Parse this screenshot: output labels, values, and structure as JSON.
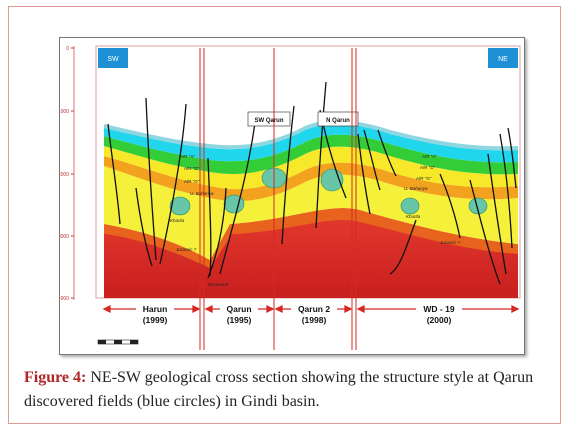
{
  "figure": {
    "direction_left": "SW",
    "direction_right": "NE",
    "depth_ticks": [
      "0",
      "1000",
      "2000",
      "3000",
      "4000"
    ],
    "well_labels": [
      "SW Qarun",
      "N Qarun"
    ],
    "layer_labels": {
      "ar_a_left": "A/R \"A\"",
      "ar_d_left": "A/R \"D\"",
      "ar_g_left": "A/R \"G\"",
      "u_bahariya_left": "U. Bahariya",
      "kharita_left": "Kharita",
      "jurassic_left": "Jurassic ?",
      "basement": "Basement",
      "ar_a_right": "A/R \"A\"",
      "ar_d_right": "A/R \"D\"",
      "ar_g_right": "A/R \"G\"",
      "u_bahariya_right": "U. Bahariya",
      "kharita_right": "Kharita",
      "jurassic_right": "Jurassic ?"
    },
    "fields": [
      {
        "name": "Harun",
        "year": "(1999)"
      },
      {
        "name": "Qarun",
        "year": "(1995)"
      },
      {
        "name": "Qarun 2",
        "year": "(1998)"
      },
      {
        "name": "WD - 19",
        "year": "(2000)"
      }
    ],
    "colors": {
      "accent_red": "#d42a25",
      "direction_box": "#1e90d6",
      "layer_cyan": "#1fd7ee",
      "layer_green": "#2fcf36",
      "layer_yellow": "#f6f23c",
      "layer_orange": "#f09a1c",
      "basement_red": "#d82a26",
      "field_circle": "#67c6a8"
    }
  },
  "caption": {
    "label": "Figure 4:",
    "text": " NE-SW geological cross section showing the structure style at Qarun discovered fields (blue circles) in Gindi basin."
  }
}
